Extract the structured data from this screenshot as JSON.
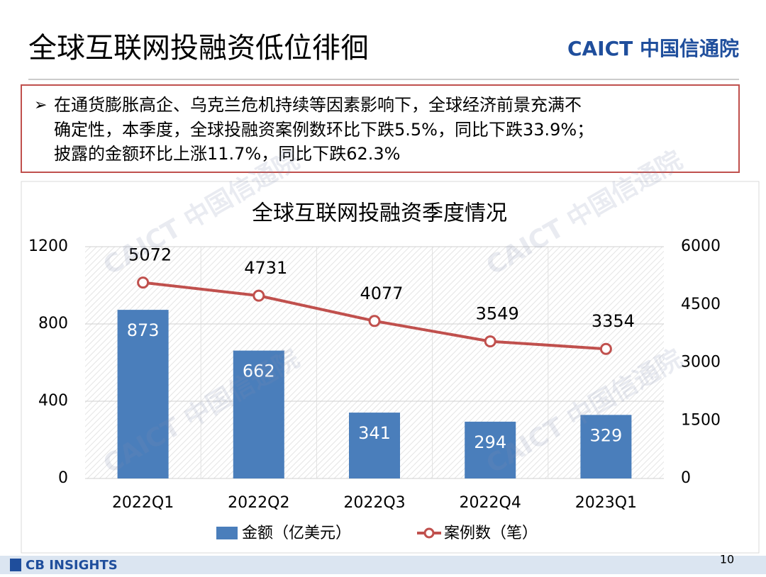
{
  "header": {
    "title": "全球互联网投融资低位徘徊",
    "logo": "CAICT 中国信通院"
  },
  "bullet": {
    "lines": [
      "在通货膨胀高企、乌克兰危机持续等因素影响下，全球经济前景充满不",
      "确定性，本季度，全球投融资案例数环比下跌5.5%，同比下跌33.9%；",
      "披露的金额环比上涨11.7%，同比下跌62.3%"
    ]
  },
  "watermark": "CAICT 中国信通院",
  "chart_data": {
    "type": "combo",
    "title": "全球互联网投融资季度情况",
    "categories": [
      "2022Q1",
      "2022Q2",
      "2022Q3",
      "2022Q4",
      "2023Q1"
    ],
    "series": [
      {
        "name": "金额（亿美元）",
        "type": "bar",
        "color": "#4a7ebb",
        "values": [
          873,
          662,
          341,
          294,
          329
        ]
      },
      {
        "name": "案例数（笔）",
        "type": "line",
        "axis": "y2",
        "color": "#c0504d",
        "values": [
          5072,
          4731,
          4077,
          3549,
          3354
        ]
      }
    ],
    "ylim": [
      0,
      1200
    ],
    "yticks": [
      0,
      400,
      800,
      1200
    ],
    "y2lim": [
      0,
      6000
    ],
    "y2ticks": [
      0,
      1500,
      3000,
      4500,
      6000
    ],
    "grid": true,
    "legend": "bottom"
  },
  "footer": {
    "logo": "CB INSIGHTS",
    "page_number": "10"
  }
}
